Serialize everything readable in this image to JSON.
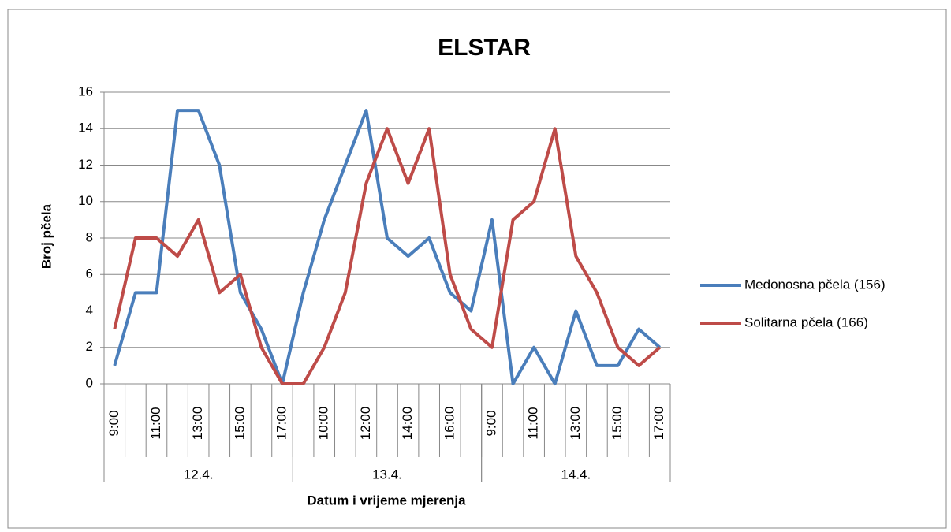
{
  "chart_data": {
    "type": "line",
    "title": "ELSTAR",
    "y_label": "Broj pčela",
    "x_label": "Datum  i vrijeme mjerenja",
    "categories": [
      "9:00",
      null,
      "11:00",
      null,
      "13:00",
      null,
      "15:00",
      null,
      "17:00",
      null,
      "10:00",
      null,
      "12:00",
      null,
      "14:00",
      null,
      "16:00",
      null,
      "9:00",
      null,
      "11:00",
      null,
      "13:00",
      null,
      "15:00",
      null,
      "17:00"
    ],
    "groups": [
      {
        "label": "12.4.",
        "count": 9
      },
      {
        "label": "13.4.",
        "count": 9
      },
      {
        "label": "14.4.",
        "count": 9
      }
    ],
    "series": [
      {
        "name": "Medonosna pčela (156)",
        "color": "#4a7ebb",
        "values": [
          1,
          5,
          5,
          15,
          15,
          12,
          5,
          3,
          0,
          5,
          9,
          12,
          15,
          8,
          7,
          8,
          5,
          4,
          9,
          0,
          2,
          0,
          4,
          1,
          1,
          3,
          2
        ]
      },
      {
        "name": "Solitarna pčela (166)",
        "color": "#be4b48",
        "values": [
          3,
          8,
          8,
          7,
          9,
          5,
          6,
          2,
          0,
          0,
          2,
          5,
          11,
          14,
          11,
          14,
          6,
          3,
          2,
          9,
          10,
          14,
          7,
          5,
          2,
          1,
          2
        ]
      }
    ],
    "ylim": [
      0,
      16
    ],
    "yticks": [
      0,
      2,
      4,
      6,
      8,
      10,
      12,
      14,
      16
    ],
    "grid": true,
    "legend": "right"
  }
}
